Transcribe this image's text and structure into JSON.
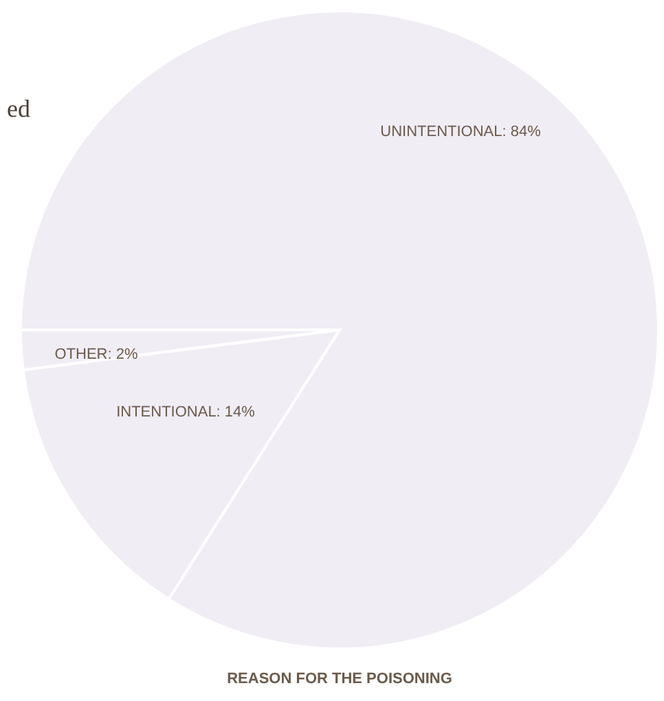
{
  "chart_data": {
    "type": "pie",
    "title": "REASON FOR THE POISONING",
    "categories": [
      "UNINTENTIONAL",
      "INTENTIONAL",
      "OTHER"
    ],
    "values": [
      84,
      14,
      2
    ],
    "value_labels": [
      "84%",
      "14%",
      "2%"
    ],
    "colors": [
      "#f0edf5",
      "#f0edf5",
      "#f0edf5"
    ],
    "annotations": [
      "ed"
    ]
  }
}
